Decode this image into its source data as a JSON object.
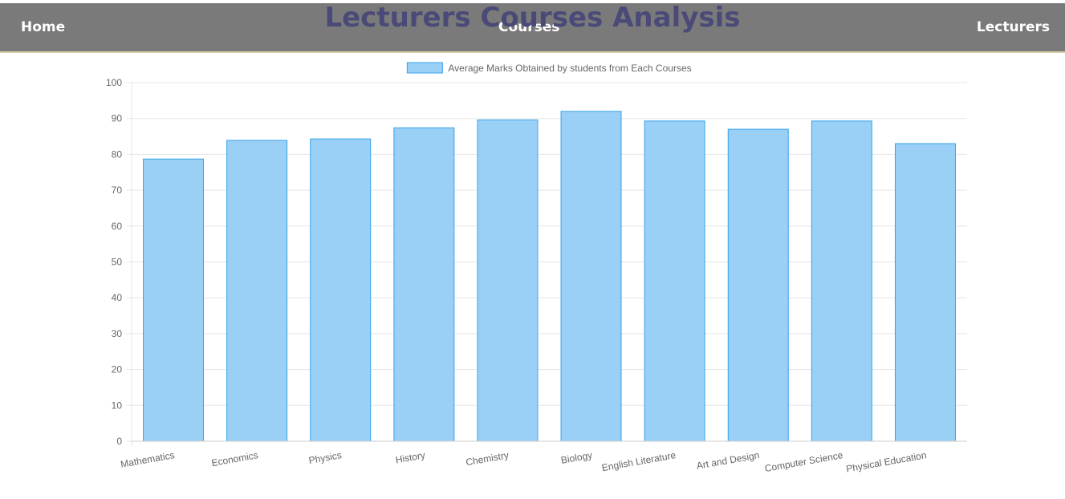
{
  "nav": {
    "home_label": "Home",
    "courses_label": "Courses",
    "lecturers_label": "Lecturers"
  },
  "page_title": "Lecturers Courses Analysis",
  "colors": {
    "navbar_bg": "#7a7a7a",
    "title": "#4a4a78",
    "bar_fill": "#9ad0f5",
    "bar_border": "#36a2eb",
    "grid": "#e5e5e5",
    "tick_text": "#666666"
  },
  "chart_data": {
    "type": "bar",
    "categories": [
      "Mathematics",
      "Economics",
      "Physics",
      "History",
      "Chemistry",
      "Biology",
      "English Literature",
      "Art and Design",
      "Computer Science",
      "Physical Education"
    ],
    "series": [
      {
        "name": "Average Marks Obtained by students from Each Courses",
        "values": [
          78.7,
          83.9,
          84.3,
          87.4,
          89.6,
          92.0,
          89.3,
          87.0,
          89.3,
          83.0
        ]
      }
    ],
    "ylim": [
      0,
      100
    ],
    "yticks": [
      0,
      10,
      20,
      30,
      40,
      50,
      60,
      70,
      80,
      90,
      100
    ],
    "grid": true,
    "legend_position": "top-center"
  }
}
